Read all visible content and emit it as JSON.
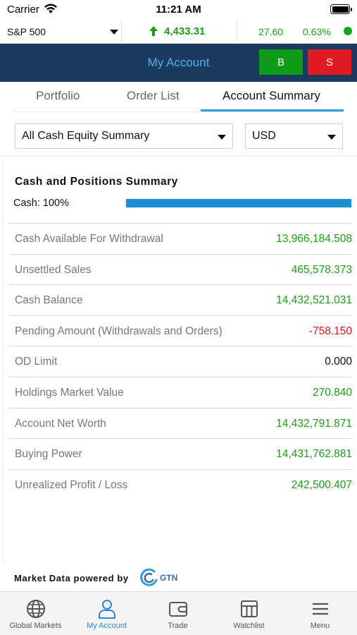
{
  "status_bar": {
    "carrier": "Carrier",
    "time": "11:21 AM"
  },
  "ticker": {
    "index_name": "S&P 500",
    "value": "4,433.31",
    "change": "27.60",
    "change_pct": "0.63%",
    "direction_icon": "arrow-up-icon",
    "color_up": "#17a017"
  },
  "header": {
    "title": "My Account",
    "buy_label": "B",
    "sell_label": "S"
  },
  "tabs": [
    {
      "label": "Portfolio",
      "active": false
    },
    {
      "label": "Order List",
      "active": false
    },
    {
      "label": "Account Summary",
      "active": true
    }
  ],
  "filters": {
    "summary_type": "All Cash Equity Summary",
    "currency": "USD"
  },
  "summary": {
    "title": "Cash and Positions Summary",
    "cash_label": "Cash: 100%",
    "cash_fraction": 1.0,
    "rows": [
      {
        "label": "Cash Available For Withdrawal",
        "value": "13,966,184.508",
        "color": "#1a9e1a"
      },
      {
        "label": "Unsettled Sales",
        "value": "465,578.373",
        "color": "#1a9e1a"
      },
      {
        "label": "Cash Balance",
        "value": "14,432,521.031",
        "color": "#1a9e1a"
      },
      {
        "label": "Pending Amount (Withdrawals and Orders)",
        "value": "-758.150",
        "color": "#e0161d"
      },
      {
        "label": "OD Limit",
        "value": "0.000",
        "color": "#111111"
      },
      {
        "label": "Holdings Market Value",
        "value": "270.840",
        "color": "#1a9e1a"
      },
      {
        "label": "Account Net Worth",
        "value": "14,432,791.871",
        "color": "#1a9e1a"
      },
      {
        "label": "Buying Power",
        "value": "14,431,762.881",
        "color": "#1a9e1a"
      },
      {
        "label": "Unrealized Profit / Loss",
        "value": "242,500.407",
        "color": "#1a9e1a"
      }
    ]
  },
  "footer": {
    "powered_by": "Market Data powered by",
    "logo_text": "GTN"
  },
  "bottom_nav": [
    {
      "label": "Global Markets",
      "icon": "globe-icon",
      "active": false
    },
    {
      "label": "My Account",
      "icon": "user-icon",
      "active": true
    },
    {
      "label": "Trade",
      "icon": "wallet-icon",
      "active": false
    },
    {
      "label": "Watchlist",
      "icon": "watchlist-icon",
      "active": false
    },
    {
      "label": "Menu",
      "icon": "hamburger-icon",
      "active": false
    }
  ]
}
